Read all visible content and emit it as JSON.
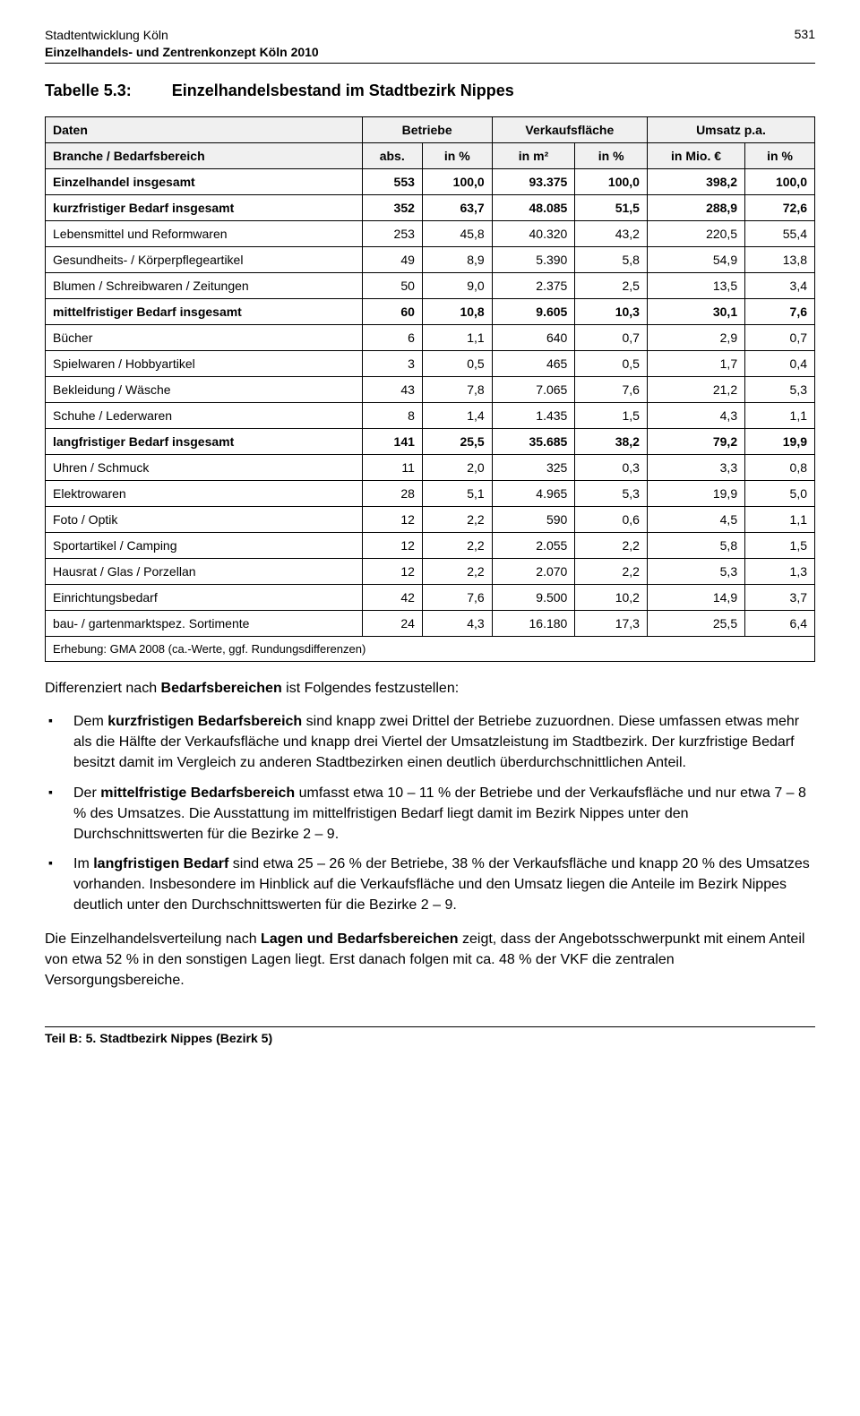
{
  "header": {
    "line1": "Stadtentwicklung Köln",
    "line2": "Einzelhandels- und Zentrenkonzept Köln 2010",
    "page_number": "531"
  },
  "table_title": {
    "label": "Tabelle 5.3:",
    "text": "Einzelhandelsbestand im Stadtbezirk Nippes"
  },
  "table": {
    "header_row1": [
      "Daten",
      "Betriebe",
      "Verkaufsfläche",
      "Umsatz p.a."
    ],
    "header_row2": [
      "Branche / Bedarfsbereich",
      "abs.",
      "in %",
      "in m²",
      "in %",
      "in Mio. €",
      "in %"
    ],
    "rows": [
      {
        "bold": true,
        "label": "Einzelhandel insgesamt",
        "c": [
          "553",
          "100,0",
          "93.375",
          "100,0",
          "398,2",
          "100,0"
        ]
      },
      {
        "bold": true,
        "label": "kurzfristiger Bedarf insgesamt",
        "c": [
          "352",
          "63,7",
          "48.085",
          "51,5",
          "288,9",
          "72,6"
        ]
      },
      {
        "bold": false,
        "label": "Lebensmittel und Reformwaren",
        "c": [
          "253",
          "45,8",
          "40.320",
          "43,2",
          "220,5",
          "55,4"
        ]
      },
      {
        "bold": false,
        "label": "Gesundheits- / Körperpflegeartikel",
        "c": [
          "49",
          "8,9",
          "5.390",
          "5,8",
          "54,9",
          "13,8"
        ]
      },
      {
        "bold": false,
        "label": "Blumen / Schreibwaren / Zeitungen",
        "c": [
          "50",
          "9,0",
          "2.375",
          "2,5",
          "13,5",
          "3,4"
        ]
      },
      {
        "bold": true,
        "label": "mittelfristiger Bedarf insgesamt",
        "c": [
          "60",
          "10,8",
          "9.605",
          "10,3",
          "30,1",
          "7,6"
        ]
      },
      {
        "bold": false,
        "label": "Bücher",
        "c": [
          "6",
          "1,1",
          "640",
          "0,7",
          "2,9",
          "0,7"
        ]
      },
      {
        "bold": false,
        "label": "Spielwaren / Hobbyartikel",
        "c": [
          "3",
          "0,5",
          "465",
          "0,5",
          "1,7",
          "0,4"
        ]
      },
      {
        "bold": false,
        "label": "Bekleidung / Wäsche",
        "c": [
          "43",
          "7,8",
          "7.065",
          "7,6",
          "21,2",
          "5,3"
        ]
      },
      {
        "bold": false,
        "label": "Schuhe / Lederwaren",
        "c": [
          "8",
          "1,4",
          "1.435",
          "1,5",
          "4,3",
          "1,1"
        ]
      },
      {
        "bold": true,
        "label": "langfristiger Bedarf insgesamt",
        "c": [
          "141",
          "25,5",
          "35.685",
          "38,2",
          "79,2",
          "19,9"
        ]
      },
      {
        "bold": false,
        "label": "Uhren / Schmuck",
        "c": [
          "11",
          "2,0",
          "325",
          "0,3",
          "3,3",
          "0,8"
        ]
      },
      {
        "bold": false,
        "label": "Elektrowaren",
        "c": [
          "28",
          "5,1",
          "4.965",
          "5,3",
          "19,9",
          "5,0"
        ]
      },
      {
        "bold": false,
        "label": "Foto / Optik",
        "c": [
          "12",
          "2,2",
          "590",
          "0,6",
          "4,5",
          "1,1"
        ]
      },
      {
        "bold": false,
        "label": "Sportartikel / Camping",
        "c": [
          "12",
          "2,2",
          "2.055",
          "2,2",
          "5,8",
          "1,5"
        ]
      },
      {
        "bold": false,
        "label": "Hausrat / Glas / Porzellan",
        "c": [
          "12",
          "2,2",
          "2.070",
          "2,2",
          "5,3",
          "1,3"
        ]
      },
      {
        "bold": false,
        "label": "Einrichtungsbedarf",
        "c": [
          "42",
          "7,6",
          "9.500",
          "10,2",
          "14,9",
          "3,7"
        ]
      },
      {
        "bold": false,
        "label": "bau- / gartenmarktspez. Sortimente",
        "c": [
          "24",
          "4,3",
          "16.180",
          "17,3",
          "25,5",
          "6,4"
        ]
      }
    ],
    "footnote": "Erhebung: GMA 2008 (ca.-Werte, ggf. Rundungsdifferenzen)"
  },
  "intro_text": {
    "prefix": "Differenziert nach ",
    "bold": "Bedarfsbereichen",
    "suffix": " ist Folgendes festzustellen:"
  },
  "bullets": [
    {
      "runs": [
        {
          "t": "Dem "
        },
        {
          "b": true,
          "t": "kurzfristigen Bedarfsbereich"
        },
        {
          "t": " sind knapp zwei Drittel der Betriebe zuzuordnen. Diese umfassen etwas mehr als die Hälfte der Verkaufsfläche und knapp drei Viertel der Umsatzleistung im Stadtbezirk. Der kurzfristige Bedarf besitzt damit im Vergleich zu anderen Stadtbezirken einen deutlich überdurchschnittlichen Anteil."
        }
      ]
    },
    {
      "runs": [
        {
          "t": "Der "
        },
        {
          "b": true,
          "t": "mittelfristige Bedarfsbereich"
        },
        {
          "t": " umfasst etwa 10 – 11 % der Betriebe und der Verkaufsfläche und nur etwa 7 – 8 % des Umsatzes. Die Ausstattung im mittelfristigen Bedarf liegt damit im Bezirk Nippes unter den Durchschnittswerten für die Bezirke 2 – 9."
        }
      ]
    },
    {
      "runs": [
        {
          "t": "Im "
        },
        {
          "b": true,
          "t": "langfristigen Bedarf"
        },
        {
          "t": " sind etwa 25 – 26 % der Betriebe, 38 % der Verkaufsfläche und knapp 20 % des Umsatzes vorhanden. Insbesondere im Hinblick auf die Verkaufsfläche und den Umsatz liegen die Anteile im Bezirk Nippes deutlich unter den Durchschnittswerten für die Bezirke 2 – 9."
        }
      ]
    }
  ],
  "closing_text": {
    "prefix": "Die Einzelhandelsverteilung nach ",
    "bold": "Lagen und Bedarfsbereichen",
    "suffix": " zeigt, dass der Angebotsschwerpunkt mit einem Anteil von etwa 52 % in den sonstigen Lagen liegt. Erst danach folgen mit ca. 48 % der VKF die zentralen Versorgungsbereiche."
  },
  "footer": "Teil B: 5. Stadtbezirk Nippes (Bezirk 5)"
}
